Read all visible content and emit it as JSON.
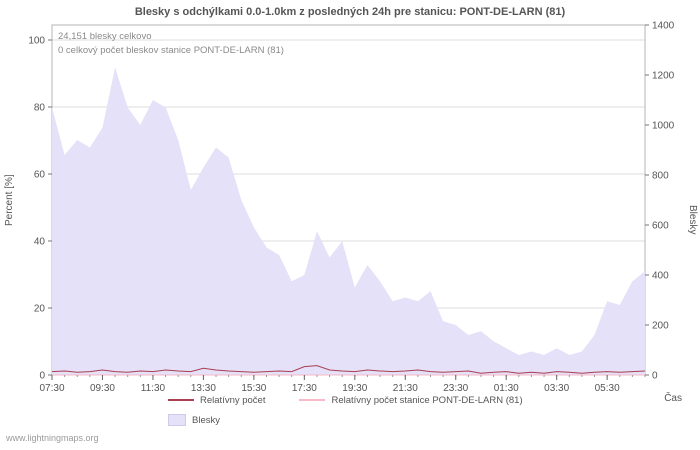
{
  "title": "Blesky s odchýlkami 0.0-1.0km z posledných 24h pre stanicu: PONT-DE-LARN (81)",
  "annotations": {
    "total_label": "24,151 blesky celkovo",
    "station_label": "0 celkový počet bleskov stanice PONT-DE-LARN (81)"
  },
  "axes": {
    "left_label": "Percent  [%]",
    "right_label": "Blesky",
    "x_label": "Čas"
  },
  "legend": {
    "relative_label": "Relatívny počet",
    "station_label": "Relatívny počet stanice PONT-DE-LARN (81)",
    "area_label": "Blesky"
  },
  "watermark": "www.lightningmaps.org",
  "colors": {
    "area": "#e4e1f8",
    "relative_line": "#aa3e52",
    "station_line": "#f9b9c9",
    "grid": "#dcdcdc",
    "frame": "#b5b5b5",
    "text": "#555555"
  },
  "chart_data": {
    "type": "area",
    "title": "Blesky s odchýlkami 0.0-1.0km z posledných 24h pre stanicu: PONT-DE-LARN (81)",
    "xlabel": "Čas",
    "ylabel_left": "Percent [%]",
    "ylabel_right": "Blesky",
    "ylim_left": [
      0,
      100
    ],
    "ylim_right": [
      0,
      1400
    ],
    "left_ticks": [
      0,
      20,
      40,
      60,
      80,
      100
    ],
    "right_ticks": [
      0,
      200,
      400,
      600,
      800,
      1000,
      1200,
      1400
    ],
    "x_tick_labels": [
      "07:30",
      "09:30",
      "11:30",
      "13:30",
      "15:30",
      "17:30",
      "19:30",
      "21:30",
      "23:30",
      "01:30",
      "03:30",
      "05:30"
    ],
    "total_count_label": "24,151",
    "station_count": 0,
    "x": [
      "07:30",
      "08:00",
      "08:30",
      "09:00",
      "09:30",
      "10:00",
      "10:30",
      "11:00",
      "11:30",
      "12:00",
      "12:30",
      "13:00",
      "13:30",
      "14:00",
      "14:30",
      "15:00",
      "15:30",
      "16:00",
      "16:30",
      "17:00",
      "17:30",
      "18:00",
      "18:30",
      "19:00",
      "19:30",
      "20:00",
      "20:30",
      "21:00",
      "21:30",
      "22:00",
      "22:30",
      "23:00",
      "23:30",
      "00:00",
      "00:30",
      "01:00",
      "01:30",
      "02:00",
      "02:30",
      "03:00",
      "03:30",
      "04:00",
      "04:30",
      "05:00",
      "05:30",
      "06:00",
      "06:30",
      "07:00"
    ],
    "series": [
      {
        "name": "Blesky",
        "type": "area",
        "axis": "right",
        "values": [
          1070,
          880,
          940,
          910,
          990,
          1230,
          1070,
          1000,
          1100,
          1070,
          940,
          740,
          830,
          910,
          870,
          700,
          590,
          510,
          480,
          375,
          400,
          575,
          470,
          535,
          350,
          440,
          375,
          295,
          310,
          295,
          335,
          215,
          200,
          160,
          175,
          135,
          107,
          80,
          94,
          80,
          107,
          80,
          94,
          160,
          295,
          280,
          375,
          415
        ]
      },
      {
        "name": "Relatívny počet",
        "type": "line",
        "axis": "left",
        "values": [
          1.0,
          1.2,
          0.8,
          1.0,
          1.5,
          1.0,
          0.8,
          1.2,
          1.0,
          1.5,
          1.2,
          1.0,
          2.0,
          1.5,
          1.2,
          1.0,
          0.8,
          1.0,
          1.2,
          1.0,
          2.5,
          2.8,
          1.5,
          1.2,
          1.0,
          1.5,
          1.2,
          1.0,
          1.2,
          1.5,
          1.0,
          0.8,
          1.0,
          1.2,
          0.5,
          0.8,
          1.0,
          0.5,
          0.8,
          0.5,
          1.0,
          0.8,
          0.5,
          0.8,
          1.0,
          0.8,
          1.0,
          1.2
        ]
      },
      {
        "name": "Relatívny počet stanice PONT-DE-LARN (81)",
        "type": "line",
        "axis": "left",
        "values": [
          0,
          0,
          0,
          0,
          0,
          0,
          0,
          0,
          0,
          0,
          0,
          0,
          0,
          0,
          0,
          0,
          0,
          0,
          0,
          0,
          0,
          0,
          0,
          0,
          0,
          0,
          0,
          0,
          0,
          0,
          0,
          0,
          0,
          0,
          0,
          0,
          0,
          0,
          0,
          0,
          0,
          0,
          0,
          0,
          0,
          0,
          0,
          0
        ]
      }
    ]
  }
}
